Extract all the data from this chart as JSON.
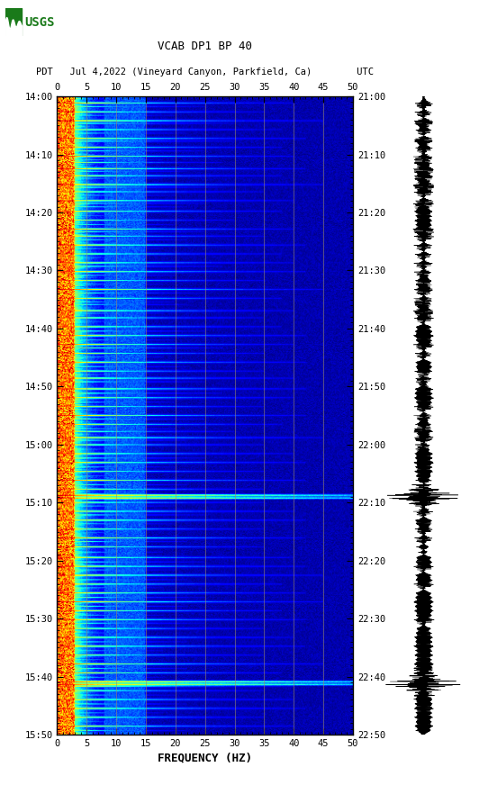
{
  "title_line1": "VCAB DP1 BP 40",
  "title_line2": "PDT   Jul 4,2022 (Vineyard Canyon, Parkfield, Ca)        UTC",
  "xlabel": "FREQUENCY (HZ)",
  "xlim": [
    0,
    50
  ],
  "xticks": [
    0,
    5,
    10,
    15,
    20,
    25,
    30,
    35,
    40,
    45,
    50
  ],
  "yticks_left": [
    "14:00",
    "14:10",
    "14:20",
    "14:30",
    "14:40",
    "14:50",
    "15:00",
    "15:10",
    "15:20",
    "15:30",
    "15:40",
    "15:50"
  ],
  "yticks_right": [
    "21:00",
    "21:10",
    "21:20",
    "21:30",
    "21:40",
    "21:50",
    "22:00",
    "22:10",
    "22:20",
    "22:30",
    "22:40",
    "22:50"
  ],
  "n_time": 720,
  "n_freq": 500,
  "freq_max": 50,
  "background_color": "white",
  "vgrid_lines_freq": [
    5,
    10,
    15,
    20,
    25,
    30,
    35,
    40,
    45
  ],
  "colormap": "jet",
  "fig_width": 5.52,
  "fig_height": 8.92,
  "usgs_green": "#1a7a1a",
  "font_family": "monospace"
}
